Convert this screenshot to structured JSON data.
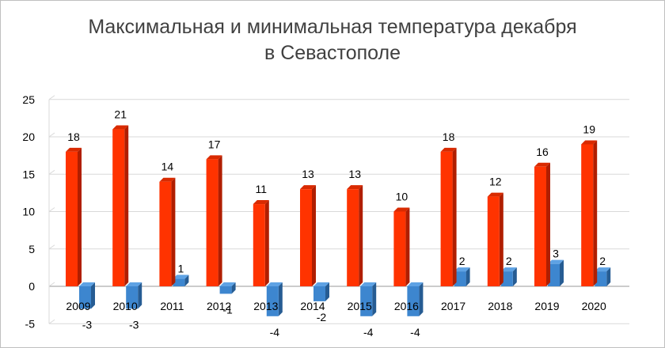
{
  "chart_data": {
    "type": "bar",
    "title_lines": [
      "Максимальная и минимальная температура декабря",
      "в Севастополе"
    ],
    "categories": [
      "2009",
      "2010",
      "2011",
      "2012",
      "2013",
      "2014",
      "2015",
      "2016",
      "2017",
      "2018",
      "2019",
      "2020"
    ],
    "series": [
      {
        "values": [
          18,
          21,
          14,
          17,
          11,
          13,
          13,
          10,
          18,
          12,
          16,
          19
        ],
        "color": "#ff3300",
        "color_side": "#b01e00",
        "color_top": "#d92a00"
      },
      {
        "values": [
          -3,
          -3,
          1,
          -1,
          -4,
          -2,
          -4,
          -4,
          2,
          2,
          3,
          2
        ],
        "color": "#3d86cf",
        "color_side": "#265c93",
        "color_top": "#5ea2e4"
      }
    ],
    "y_ticks": [
      25,
      20,
      15,
      10,
      5,
      0,
      -5
    ],
    "ylim": [
      -5,
      25
    ],
    "grid": true,
    "legend": "none",
    "three_d": true
  }
}
